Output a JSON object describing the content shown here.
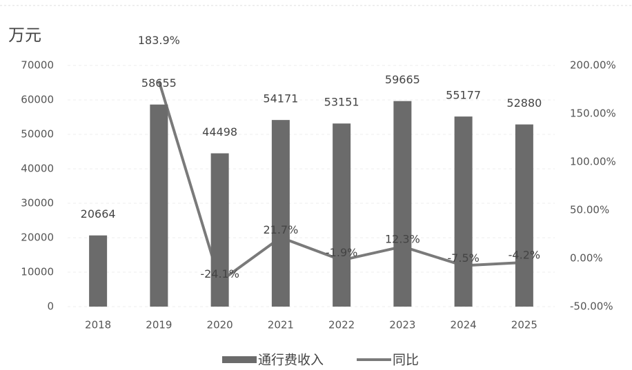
{
  "chart_data": {
    "type": "bar",
    "y_label": "万元",
    "categories": [
      "2018",
      "2019",
      "2020",
      "2021",
      "2022",
      "2023",
      "2024",
      "2025"
    ],
    "series": [
      {
        "name": "通行费收入",
        "type": "bar",
        "color": "#6b6b6b",
        "values": [
          20664,
          58655,
          44498,
          54171,
          53151,
          59665,
          55177,
          52880
        ]
      },
      {
        "name": "同比",
        "type": "line",
        "axis": "y2",
        "color": "#7a7a7a",
        "values": [
          null,
          183.9,
          -24.1,
          21.7,
          -1.9,
          12.3,
          -7.5,
          -4.2
        ],
        "value_labels": [
          null,
          "183.9%",
          "-24.1%",
          "21.7%",
          "-1.9%",
          "12.3%",
          "-7.5%",
          "-4.2%"
        ]
      }
    ],
    "ylim": [
      0,
      70000
    ],
    "yticks": [
      0,
      10000,
      20000,
      30000,
      40000,
      50000,
      60000,
      70000
    ],
    "y2lim": [
      -50,
      200
    ],
    "y2ticks": [
      {
        "value": -50,
        "label": "-50.00%"
      },
      {
        "value": 0,
        "label": "0.00%"
      },
      {
        "value": 50,
        "label": "50.00%"
      },
      {
        "value": 100,
        "label": "100.00%"
      },
      {
        "value": 150,
        "label": "150.00%"
      },
      {
        "value": 200,
        "label": "200.00%"
      }
    ],
    "grid": true,
    "legend": "bottom"
  }
}
